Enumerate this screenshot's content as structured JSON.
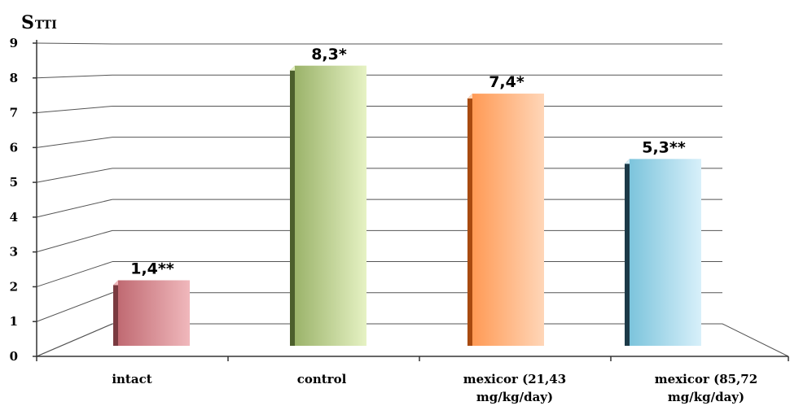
{
  "chart_data": {
    "type": "bar",
    "ylabel_main": "S",
    "ylabel_sub": "TTI",
    "ylim": [
      0,
      9
    ],
    "y_ticks": [
      "0",
      "1",
      "2",
      "3",
      "4",
      "5",
      "6",
      "7",
      "8",
      "9"
    ],
    "grid": true,
    "categories": [
      {
        "line1": "intact",
        "line2": ""
      },
      {
        "line1": "control",
        "line2": ""
      },
      {
        "line1": "mexicor (21,43",
        "line2": "mg/kg/day)"
      },
      {
        "line1": "mexicor (85,72",
        "line2": "mg/kg/day)"
      }
    ],
    "values": [
      1.4,
      8.3,
      7.4,
      5.3
    ],
    "value_labels": [
      "1,4**",
      "8,3*",
      "7,4*",
      "5,3**"
    ],
    "colors": [
      {
        "light": "#f0b8bc",
        "mid": "#c06a72",
        "dark": "#7a3a40"
      },
      {
        "light": "#e6f2c4",
        "mid": "#9bb36a",
        "dark": "#4c5f2c"
      },
      {
        "light": "#ffd6b8",
        "mid": "#ff9a55",
        "dark": "#a84a10"
      },
      {
        "light": "#d8f0fa",
        "mid": "#7cc4dc",
        "dark": "#1c3a48"
      }
    ]
  }
}
